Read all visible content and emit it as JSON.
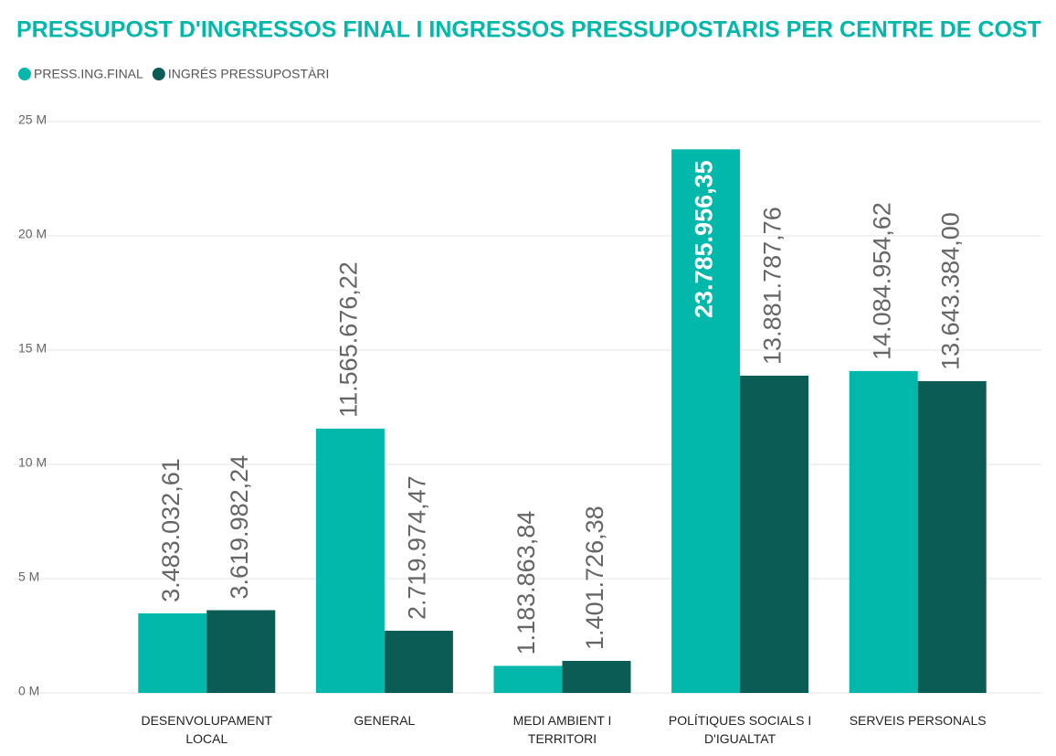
{
  "chart_data": {
    "type": "bar",
    "title": "PRESSUPOST D'INGRESSOS FINAL I INGRESSOS PRESSUPOSTARIS PER CENTRE DE COST",
    "categories": [
      "DESENVOLUPAMENT LOCAL",
      "GENERAL",
      "MEDI AMBIENT I TERRITORI",
      "POLÍTIQUES SOCIALS I D'IGUALTAT",
      "SERVEIS PERSONALS"
    ],
    "series": [
      {
        "name": "PRESS.ING.FINAL",
        "color": "#01b8aa",
        "values": [
          3483032.61,
          11565676.22,
          1183863.84,
          23785956.35,
          14084954.62
        ],
        "value_labels": [
          "3.483.032,61",
          "11.565.676,22",
          "1.183.863,84",
          "23.785.956,35",
          "14.084.954,62"
        ]
      },
      {
        "name": "INGRÉS PRESSUPOSTÀRI",
        "color": "#0a5c55",
        "values": [
          3619982.24,
          2719974.47,
          1401726.38,
          13881787.76,
          13643384.0
        ],
        "value_labels": [
          "3.619.982,24",
          "2.719.974,47",
          "1.401.726,38",
          "13.881.787,76",
          "13.643.384,00"
        ]
      }
    ],
    "ylim": [
      0,
      25000000
    ],
    "yticks": [
      {
        "value": 0,
        "label": "0 M"
      },
      {
        "value": 5000000,
        "label": "5 M"
      },
      {
        "value": 10000000,
        "label": "10 M"
      },
      {
        "value": 15000000,
        "label": "15 M"
      },
      {
        "value": 20000000,
        "label": "20 M"
      },
      {
        "value": 25000000,
        "label": "25 M"
      }
    ],
    "grid": true,
    "legend": "top-left"
  }
}
